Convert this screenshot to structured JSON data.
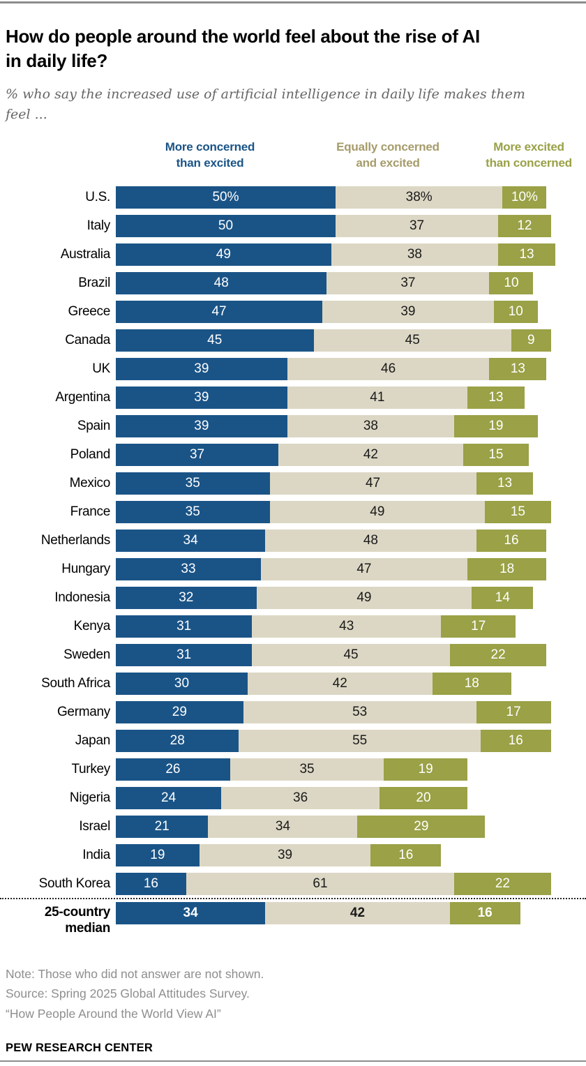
{
  "header": {
    "title": "How do people around the world feel about the rise of AI in daily life?",
    "subtitle": "% who say the increased use of artificial intelligence in daily life makes them feel ..."
  },
  "legend": [
    {
      "line1": "More concerned",
      "line2": "than excited",
      "color": "#1A5487"
    },
    {
      "line1": "Equally concerned",
      "line2": "and excited",
      "color": "#A69C6A"
    },
    {
      "line1": "More excited",
      "line2": "than concerned",
      "color": "#9AA146"
    }
  ],
  "chart_data": {
    "type": "bar",
    "stacked": true,
    "orientation": "horizontal",
    "unit": "percent",
    "xlim": [
      0,
      100
    ],
    "grid": false,
    "value_suffix_first_row": "%",
    "categories": [
      "U.S.",
      "Italy",
      "Australia",
      "Brazil",
      "Greece",
      "Canada",
      "UK",
      "Argentina",
      "Spain",
      "Poland",
      "Mexico",
      "France",
      "Netherlands",
      "Hungary",
      "Indonesia",
      "Kenya",
      "Sweden",
      "South Africa",
      "Germany",
      "Japan",
      "Turkey",
      "Nigeria",
      "Israel",
      "India",
      "South Korea",
      "25-country median"
    ],
    "median_row_index": 25,
    "series": [
      {
        "name": "More concerned than excited",
        "color": "#1A5487",
        "text_color": "#FFFFFF",
        "values": [
          50,
          50,
          49,
          48,
          47,
          45,
          39,
          39,
          39,
          37,
          35,
          35,
          34,
          33,
          32,
          31,
          31,
          30,
          29,
          28,
          26,
          24,
          21,
          19,
          16,
          34
        ]
      },
      {
        "name": "Equally concerned and excited",
        "color": "#DCD7C4",
        "text_color": "#1A1A1A",
        "values": [
          38,
          37,
          38,
          37,
          39,
          45,
          46,
          41,
          38,
          42,
          47,
          49,
          48,
          47,
          49,
          43,
          45,
          42,
          53,
          55,
          35,
          36,
          34,
          39,
          61,
          42
        ]
      },
      {
        "name": "More excited than concerned",
        "color": "#9AA146",
        "text_color": "#FFFFFF",
        "values": [
          10,
          12,
          13,
          10,
          10,
          9,
          13,
          13,
          19,
          15,
          13,
          15,
          16,
          18,
          14,
          17,
          22,
          18,
          17,
          16,
          19,
          20,
          29,
          16,
          22,
          16
        ]
      }
    ]
  },
  "notes": {
    "note": "Note: Those who did not answer are not shown.",
    "source": "Source: Spring 2025 Global Attitudes Survey.",
    "citation": "“How People Around the World View AI”"
  },
  "footer": {
    "brand": "PEW RESEARCH CENTER"
  }
}
